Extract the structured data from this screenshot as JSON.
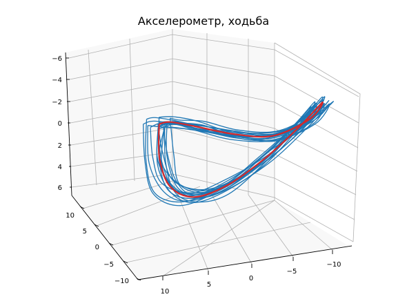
{
  "chart_data": {
    "type": "line",
    "projection": "3d",
    "title": "Акселерометр, ходьба",
    "x_ticks": [
      "10",
      "5",
      "0",
      "−5",
      "−10"
    ],
    "y_ticks": [
      "10",
      "5",
      "0",
      "−5",
      "−10"
    ],
    "z_ticks": [
      "−6",
      "−4",
      "−2",
      "0",
      "2",
      "4",
      "6"
    ],
    "grid": true,
    "series": [
      {
        "role": "trajectories",
        "color": "#1f77b4",
        "cycles": 16
      },
      {
        "role": "mean trajectory",
        "color": "#d62728",
        "points": [
          [
            6.0,
            4.0,
            -3.0
          ],
          [
            4.5,
            6.0,
            0.5
          ],
          [
            2.5,
            7.0,
            3.5
          ],
          [
            0.0,
            6.5,
            5.0
          ],
          [
            -2.5,
            4.5,
            4.5
          ],
          [
            -5.0,
            1.5,
            2.5
          ],
          [
            -7.0,
            -1.5,
            0.0
          ],
          [
            -8.0,
            -4.0,
            -2.0
          ],
          [
            -6.5,
            -4.0,
            -0.5
          ],
          [
            -3.5,
            -2.0,
            0.5
          ],
          [
            -0.5,
            0.5,
            -0.5
          ],
          [
            2.5,
            2.5,
            -2.0
          ],
          [
            5.0,
            3.5,
            -3.0
          ],
          [
            6.0,
            4.0,
            -3.0
          ]
        ]
      }
    ]
  }
}
